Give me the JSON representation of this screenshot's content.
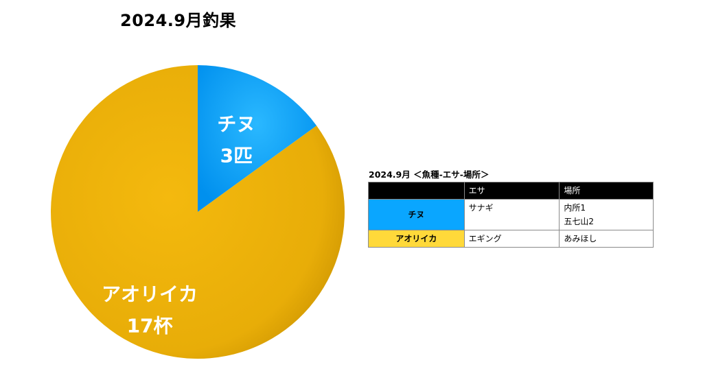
{
  "title": "2024.9月釣果",
  "chart_data": {
    "type": "pie",
    "title": "2024.9月釣果",
    "slices": [
      {
        "name": "チヌ",
        "value": 3,
        "value_label": "3匹",
        "color": "#0aa6ff"
      },
      {
        "name": "アオリイカ",
        "value": 17,
        "value_label": "17杯",
        "color": "#f7bd10"
      }
    ]
  },
  "table": {
    "title": "2024.9月 ＜魚種-エサ-場所＞",
    "headers": [
      "",
      "エサ",
      "場所"
    ],
    "rows": [
      {
        "fish": "チヌ",
        "color": "#0aa6ff",
        "bait": "サナギ",
        "places": [
          "内所1",
          "五七山2"
        ]
      },
      {
        "fish": "アオリイカ",
        "color": "#ffd93a",
        "bait": "エギング",
        "places": [
          "あみほし"
        ]
      }
    ]
  }
}
